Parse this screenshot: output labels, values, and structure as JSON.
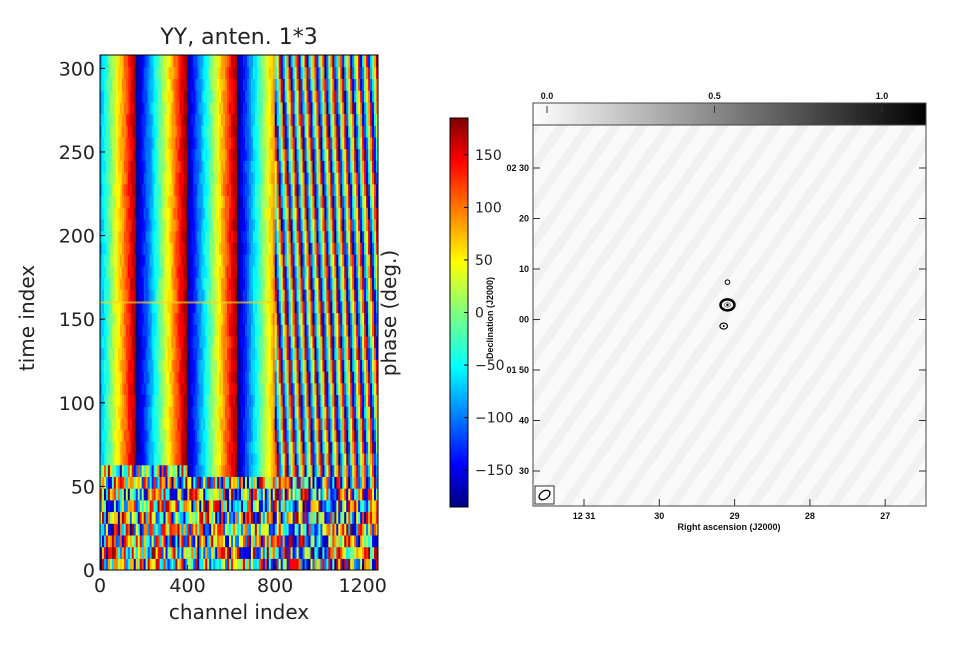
{
  "chart_data": [
    {
      "type": "heatmap",
      "title": "YY, anten. 1*3",
      "xlabel": "channel index",
      "ylabel": "time index",
      "xlim": [
        0,
        1270
      ],
      "ylim": [
        0,
        308
      ],
      "xticks": [
        "0",
        "400",
        "800",
        "1200"
      ],
      "yticks": [
        "0",
        "50",
        "100",
        "150",
        "200",
        "250",
        "300"
      ],
      "colorbar": {
        "label": "phase (deg.)",
        "range": [
          -185,
          185
        ],
        "ticks": [
          "150",
          "100",
          "50",
          "0",
          "−50",
          "−100",
          "−150"
        ],
        "colormap": "jet"
      },
      "stripe_period_channels_low": 230,
      "stripe_period_channels_high": 40,
      "transition_channel": 800,
      "noisy_below_time_index": 60,
      "flagged_row_time_index": 160
    },
    {
      "type": "heatmap",
      "xlabel": "Right ascension (J2000)",
      "ylabel": "Declination (J2000)",
      "xticks": [
        "12 31",
        "30",
        "29",
        "28",
        "27"
      ],
      "yticks": [
        "02 30",
        "20",
        "10",
        "00",
        "01 50",
        "40",
        "30"
      ],
      "colorbar": {
        "ticks": [
          "0.0",
          "0.5",
          "1.0"
        ],
        "colormap": "gray-inverted",
        "range": [
          0.0,
          1.0
        ]
      },
      "sources": [
        {
          "ra_s": 29.1,
          "dec_s": 7.5,
          "strength": "weak"
        },
        {
          "ra_s": 29.1,
          "dec_s": 3.0,
          "strength": "strong"
        },
        {
          "ra_s": 29.15,
          "dec_s": -1.2,
          "strength": "medium"
        }
      ]
    }
  ]
}
